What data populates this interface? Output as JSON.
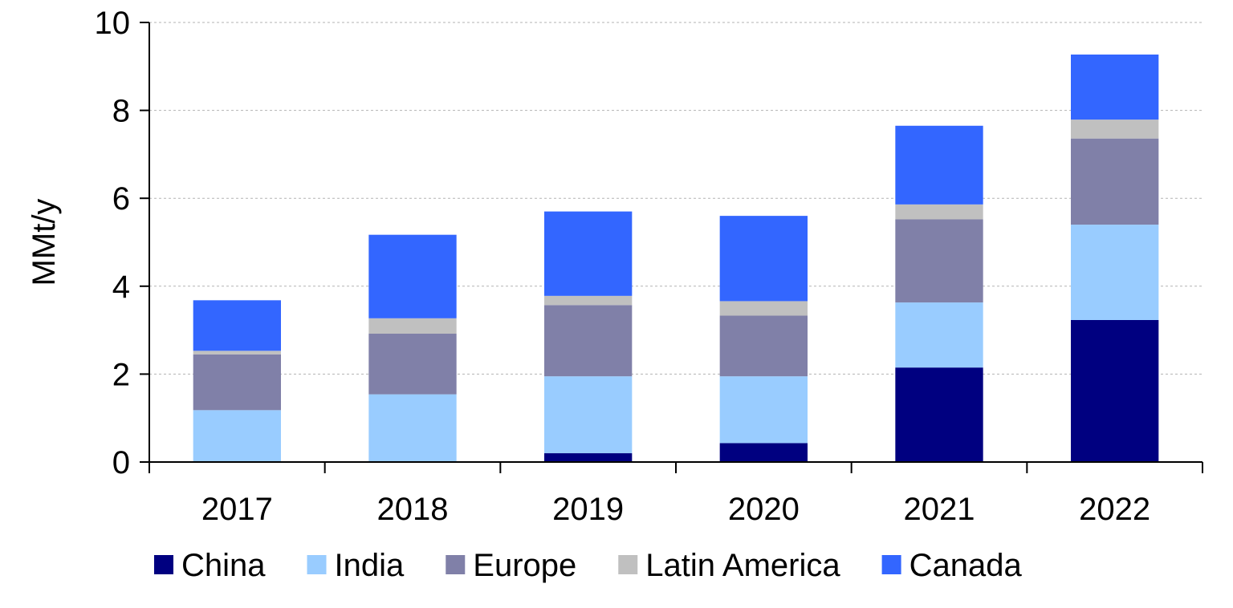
{
  "chart_data": {
    "type": "bar",
    "stacked": true,
    "categories": [
      "2017",
      "2018",
      "2019",
      "2020",
      "2021",
      "2022"
    ],
    "series": [
      {
        "name": "China",
        "color": "#000080",
        "values": [
          0.0,
          0.0,
          0.2,
          0.43,
          2.15,
          3.23
        ]
      },
      {
        "name": "India",
        "color": "#99ccff",
        "values": [
          1.18,
          1.54,
          1.75,
          1.52,
          1.48,
          2.17
        ]
      },
      {
        "name": "Europe",
        "color": "#8080a8",
        "values": [
          1.27,
          1.38,
          1.62,
          1.38,
          1.89,
          1.96
        ]
      },
      {
        "name": "Latin America",
        "color": "#c0c0c0",
        "values": [
          0.08,
          0.35,
          0.21,
          0.33,
          0.34,
          0.43
        ]
      },
      {
        "name": "Canada",
        "color": "#3366ff",
        "values": [
          1.15,
          1.9,
          1.92,
          1.94,
          1.79,
          1.48
        ]
      }
    ],
    "title": "",
    "xlabel": "",
    "ylabel": "MMt/y",
    "ylim": [
      0,
      10
    ],
    "yticks": [
      "0",
      "2",
      "4",
      "6",
      "8",
      "10"
    ],
    "grid": true,
    "legend_position": "bottom"
  }
}
